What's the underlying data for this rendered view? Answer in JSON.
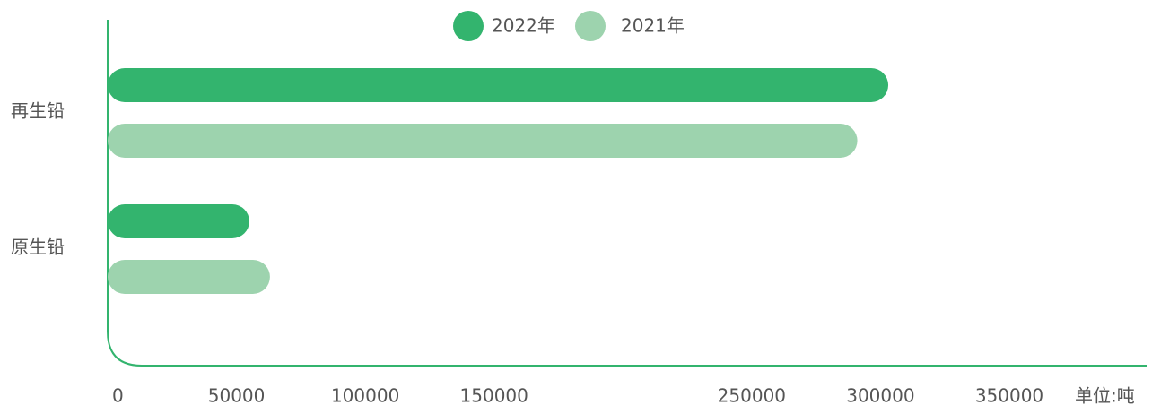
{
  "chart_data": {
    "type": "bar",
    "orientation": "horizontal",
    "categories": [
      "再生铅",
      "原生铅"
    ],
    "series": [
      {
        "name": "2022年",
        "color": "#33b46e",
        "values": [
          303000,
          55000
        ]
      },
      {
        "name": "2021年",
        "color": "#9dd3ae",
        "values": [
          291000,
          63000
        ]
      }
    ],
    "xlim": [
      0,
      350000
    ],
    "xticks": [
      0,
      50000,
      100000,
      150000,
      250000,
      300000,
      350000
    ],
    "unit_label": "单位:吨",
    "legend": "top"
  }
}
